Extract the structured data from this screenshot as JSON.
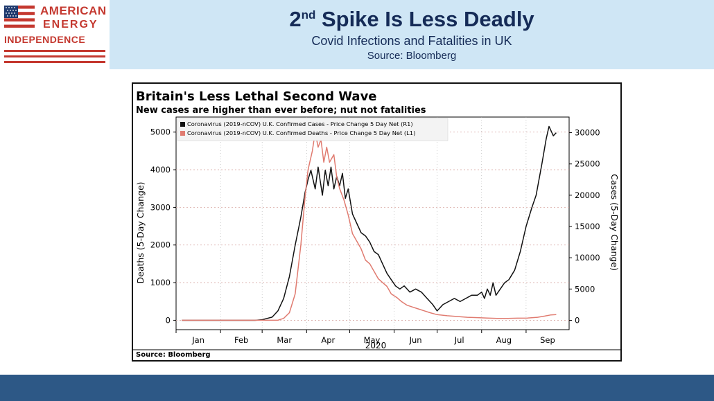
{
  "header": {
    "title_main": "2",
    "title_sup": "nd",
    "title_rest": " Spike Is Less Deadly",
    "subtitle": "Covid Infections and Fatalities in UK",
    "source": "Source: Bloomberg"
  },
  "logo": {
    "line1": "AMERICAN",
    "line2": "ENERGY",
    "line3": "INDEPENDENCE"
  },
  "colors": {
    "header_bg": "#cfe6f5",
    "title": "#152b57",
    "brand_red": "#c4382f",
    "footer": "#2d5886",
    "cases_line": "#111111",
    "deaths_line": "#e07b70"
  },
  "chart_data": {
    "type": "line",
    "title": "Britain's Less Lethal Second Wave",
    "subtitle": "New cases are higher than ever before; nut not fatalities",
    "source": "Source: Bloomberg",
    "ylabel_left": "Deaths (5-Day Change)",
    "ylabel_right": "Cases (5-Day Change)",
    "x_title": "2020",
    "x_ticks": [
      "Jan",
      "Feb",
      "Mar",
      "Apr",
      "May",
      "Jun",
      "Jul",
      "Aug",
      "Sep"
    ],
    "y_left_ticks": [
      0,
      1000,
      2000,
      3000,
      4000,
      5000
    ],
    "y_right_ticks": [
      0,
      5000,
      10000,
      15000,
      20000,
      25000,
      30000
    ],
    "ylim_left": [
      -250,
      5400
    ],
    "ylim_right": [
      -1500,
      32500
    ],
    "legend_position": "top-left",
    "series": [
      {
        "name": "Coronavirus (2019-nCOV) U.K. Confirmed Cases - Price Change 5 Day Net (R1)",
        "axis": "right",
        "color": "#111111",
        "points": [
          [
            "2020-01-05",
            0
          ],
          [
            "2020-02-25",
            0
          ],
          [
            "2020-03-01",
            100
          ],
          [
            "2020-03-08",
            500
          ],
          [
            "2020-03-12",
            1500
          ],
          [
            "2020-03-16",
            3500
          ],
          [
            "2020-03-20",
            7000
          ],
          [
            "2020-03-24",
            12000
          ],
          [
            "2020-03-28",
            16500
          ],
          [
            "2020-03-31",
            20500
          ],
          [
            "2020-04-02",
            22500
          ],
          [
            "2020-04-04",
            24000
          ],
          [
            "2020-04-07",
            21000
          ],
          [
            "2020-04-09",
            24500
          ],
          [
            "2020-04-12",
            20000
          ],
          [
            "2020-04-14",
            24000
          ],
          [
            "2020-04-16",
            21500
          ],
          [
            "2020-04-18",
            24500
          ],
          [
            "2020-04-20",
            21000
          ],
          [
            "2020-04-22",
            23000
          ],
          [
            "2020-04-24",
            21500
          ],
          [
            "2020-04-26",
            23500
          ],
          [
            "2020-04-28",
            19500
          ],
          [
            "2020-04-30",
            21000
          ],
          [
            "2020-05-03",
            17000
          ],
          [
            "2020-05-06",
            15500
          ],
          [
            "2020-05-09",
            14000
          ],
          [
            "2020-05-12",
            13500
          ],
          [
            "2020-05-15",
            12500
          ],
          [
            "2020-05-18",
            11000
          ],
          [
            "2020-05-21",
            10500
          ],
          [
            "2020-05-24",
            9000
          ],
          [
            "2020-05-27",
            7500
          ],
          [
            "2020-05-30",
            6500
          ],
          [
            "2020-06-02",
            5500
          ],
          [
            "2020-06-05",
            5000
          ],
          [
            "2020-06-08",
            5500
          ],
          [
            "2020-06-12",
            4500
          ],
          [
            "2020-06-16",
            5000
          ],
          [
            "2020-06-20",
            4500
          ],
          [
            "2020-06-24",
            3500
          ],
          [
            "2020-06-28",
            2500
          ],
          [
            "2020-07-01",
            1500
          ],
          [
            "2020-07-05",
            2500
          ],
          [
            "2020-07-09",
            3000
          ],
          [
            "2020-07-13",
            3500
          ],
          [
            "2020-07-17",
            3000
          ],
          [
            "2020-07-21",
            3500
          ],
          [
            "2020-07-25",
            4000
          ],
          [
            "2020-07-29",
            4000
          ],
          [
            "2020-08-01",
            4500
          ],
          [
            "2020-08-03",
            3500
          ],
          [
            "2020-08-05",
            5000
          ],
          [
            "2020-08-07",
            4000
          ],
          [
            "2020-08-09",
            6000
          ],
          [
            "2020-08-11",
            4000
          ],
          [
            "2020-08-14",
            5000
          ],
          [
            "2020-08-17",
            6000
          ],
          [
            "2020-08-20",
            6500
          ],
          [
            "2020-08-24",
            8000
          ],
          [
            "2020-08-28",
            11000
          ],
          [
            "2020-09-01",
            15000
          ],
          [
            "2020-09-05",
            18000
          ],
          [
            "2020-09-08",
            20000
          ],
          [
            "2020-09-12",
            25000
          ],
          [
            "2020-09-15",
            29000
          ],
          [
            "2020-09-17",
            31000
          ],
          [
            "2020-09-18",
            30500
          ],
          [
            "2020-09-20",
            29500
          ],
          [
            "2020-09-22",
            30000
          ]
        ]
      },
      {
        "name": "Coronavirus (2019-nCOV) U.K. Confirmed Deaths - Price Change 5 Day Net (L1)",
        "axis": "left",
        "color": "#e07b70",
        "points": [
          [
            "2020-01-05",
            0
          ],
          [
            "2020-03-12",
            0
          ],
          [
            "2020-03-16",
            50
          ],
          [
            "2020-03-20",
            200
          ],
          [
            "2020-03-24",
            700
          ],
          [
            "2020-03-28",
            2000
          ],
          [
            "2020-03-31",
            3300
          ],
          [
            "2020-04-02",
            4000
          ],
          [
            "2020-04-05",
            4500
          ],
          [
            "2020-04-07",
            5000
          ],
          [
            "2020-04-09",
            4600
          ],
          [
            "2020-04-11",
            4800
          ],
          [
            "2020-04-13",
            4200
          ],
          [
            "2020-04-15",
            4600
          ],
          [
            "2020-04-17",
            4200
          ],
          [
            "2020-04-20",
            4400
          ],
          [
            "2020-04-22",
            3800
          ],
          [
            "2020-04-24",
            3500
          ],
          [
            "2020-04-27",
            3200
          ],
          [
            "2020-04-30",
            2800
          ],
          [
            "2020-05-03",
            2300
          ],
          [
            "2020-05-06",
            2100
          ],
          [
            "2020-05-09",
            1900
          ],
          [
            "2020-05-12",
            1600
          ],
          [
            "2020-05-15",
            1500
          ],
          [
            "2020-05-18",
            1300
          ],
          [
            "2020-05-21",
            1100
          ],
          [
            "2020-05-24",
            1000
          ],
          [
            "2020-05-27",
            900
          ],
          [
            "2020-05-30",
            700
          ],
          [
            "2020-06-03",
            600
          ],
          [
            "2020-06-06",
            500
          ],
          [
            "2020-06-10",
            400
          ],
          [
            "2020-06-14",
            350
          ],
          [
            "2020-06-18",
            300
          ],
          [
            "2020-06-22",
            250
          ],
          [
            "2020-06-26",
            200
          ],
          [
            "2020-07-01",
            150
          ],
          [
            "2020-07-08",
            120
          ],
          [
            "2020-07-15",
            100
          ],
          [
            "2020-07-22",
            80
          ],
          [
            "2020-07-29",
            70
          ],
          [
            "2020-08-05",
            60
          ],
          [
            "2020-08-12",
            50
          ],
          [
            "2020-08-19",
            50
          ],
          [
            "2020-08-26",
            55
          ],
          [
            "2020-09-02",
            60
          ],
          [
            "2020-09-09",
            80
          ],
          [
            "2020-09-14",
            110
          ],
          [
            "2020-09-18",
            140
          ],
          [
            "2020-09-22",
            150
          ]
        ]
      }
    ]
  }
}
